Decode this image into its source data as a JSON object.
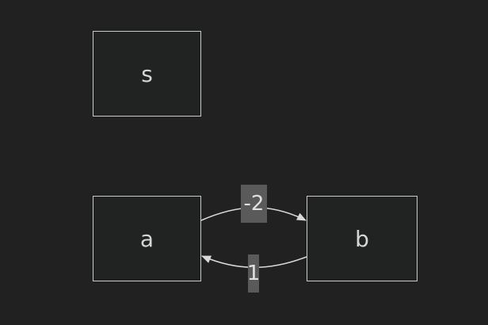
{
  "diagram": {
    "nodes": [
      {
        "id": "s",
        "label": "s"
      },
      {
        "id": "a",
        "label": "a"
      },
      {
        "id": "b",
        "label": "b"
      }
    ],
    "edges": [
      {
        "from": "a",
        "to": "b",
        "label": "-2"
      },
      {
        "from": "b",
        "to": "a",
        "label": "1"
      }
    ]
  },
  "colors": {
    "background": "#212121",
    "node_border": "#c9c9c9",
    "edge": "#d9d9d9",
    "label_bg": "#5a5a5a",
    "text": "#d6d6d6"
  }
}
